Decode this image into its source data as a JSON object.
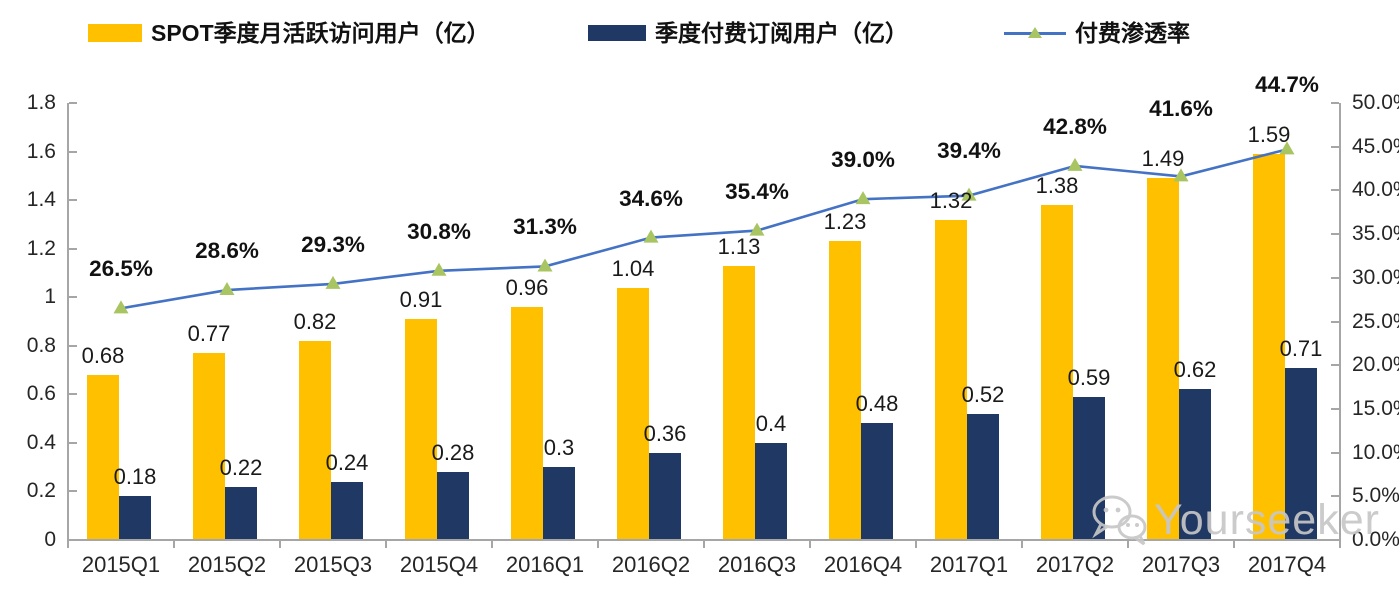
{
  "legend": {
    "items": [
      {
        "label": "SPOT季度月活跃访问用户（亿）",
        "swatch_color": "#FFC000",
        "type": "bar"
      },
      {
        "label": "季度付费订阅用户（亿）",
        "swatch_color": "#1F3864",
        "type": "bar"
      },
      {
        "label": "付费渗透率",
        "line_color": "#4472C4",
        "marker_color": "#A8C562",
        "type": "line"
      }
    ]
  },
  "watermark": {
    "text": "Yourseeker",
    "icon": "wechat-icon",
    "color": "#C7C7C7"
  },
  "chart_data": {
    "type": "combo",
    "categories": [
      "2015Q1",
      "2015Q2",
      "2015Q3",
      "2015Q4",
      "2016Q1",
      "2016Q2",
      "2016Q3",
      "2016Q4",
      "2017Q1",
      "2017Q2",
      "2017Q3",
      "2017Q4"
    ],
    "series": [
      {
        "name": "SPOT季度月活跃访问用户（亿）",
        "type": "bar",
        "axis": "left",
        "color": "#FFC000",
        "values": [
          0.68,
          0.77,
          0.82,
          0.91,
          0.96,
          1.04,
          1.13,
          1.23,
          1.32,
          1.38,
          1.49,
          1.59
        ],
        "labels": [
          "0.68",
          "0.77",
          "0.82",
          "0.91",
          "0.96",
          "1.04",
          "1.13",
          "1.23",
          "1.32",
          "1.38",
          "1.49",
          "1.59"
        ]
      },
      {
        "name": "季度付费订阅用户（亿）",
        "type": "bar",
        "axis": "left",
        "color": "#1F3864",
        "values": [
          0.18,
          0.22,
          0.24,
          0.28,
          0.3,
          0.36,
          0.4,
          0.48,
          0.52,
          0.59,
          0.62,
          0.71
        ],
        "labels": [
          "0.18",
          "0.22",
          "0.24",
          "0.28",
          "0.3",
          "0.36",
          "0.4",
          "0.48",
          "0.52",
          "0.59",
          "0.62",
          "0.71"
        ]
      },
      {
        "name": "付费渗透率",
        "type": "line",
        "axis": "right",
        "color": "#4472C4",
        "marker": "triangle",
        "marker_color": "#A8C562",
        "values": [
          26.5,
          28.6,
          29.3,
          30.8,
          31.3,
          34.6,
          35.4,
          39.0,
          39.4,
          42.8,
          41.6,
          44.7
        ],
        "labels": [
          "26.5%",
          "28.6%",
          "29.3%",
          "30.8%",
          "31.3%",
          "34.6%",
          "35.4%",
          "39.0%",
          "39.4%",
          "42.8%",
          "41.6%",
          "44.7%"
        ]
      }
    ],
    "left_axis": {
      "min": 0,
      "max": 1.8,
      "ticks": [
        "0",
        "0.2",
        "0.4",
        "0.6",
        "0.8",
        "1",
        "1.2",
        "1.4",
        "1.6",
        "1.8"
      ]
    },
    "right_axis": {
      "min": 0,
      "max": 50,
      "ticks": [
        "0.0%",
        "5.0%",
        "10.0%",
        "15.0%",
        "20.0%",
        "25.0%",
        "30.0%",
        "35.0%",
        "40.0%",
        "45.0%",
        "50.0%"
      ]
    },
    "grid": false,
    "legend_position": "top",
    "title": "",
    "xlabel": "",
    "ylabel": ""
  }
}
